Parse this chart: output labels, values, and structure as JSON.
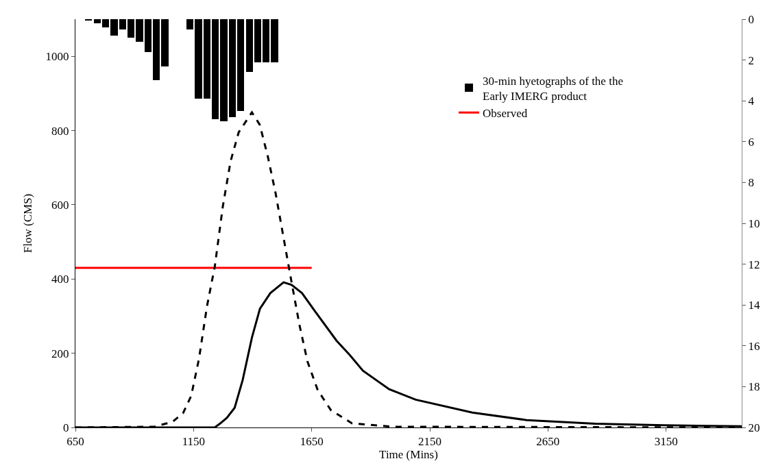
{
  "chart_data": {
    "type": "line",
    "xlabel": "Time (Mins)",
    "ylabel": "Flow (CMS)",
    "xlim": [
      650,
      3470
    ],
    "xticks": [
      650,
      1150,
      1650,
      2150,
      2650,
      3150
    ],
    "ylim": [
      0,
      1100
    ],
    "yticks": [
      0,
      200,
      400,
      600,
      800,
      1000
    ],
    "y2lim": [
      20,
      0
    ],
    "y2ticks": [
      0,
      2,
      4,
      6,
      8,
      10,
      12,
      14,
      16,
      18,
      20
    ],
    "legend": "right",
    "series": [
      {
        "name": "30-min hyetographs of the the\nEarly IMERG product",
        "type": "bar",
        "axis": "y2",
        "color": "#000000",
        "x": [
          706,
          742,
          778,
          814,
          850,
          885,
          921,
          957,
          993,
          1029,
          1135,
          1171,
          1207,
          1242,
          1278,
          1314,
          1350,
          1386,
          1421,
          1457,
          1493
        ],
        "values": [
          0.05,
          0.2,
          0.4,
          0.8,
          0.5,
          0.9,
          1.1,
          1.6,
          3.0,
          2.3,
          0.5,
          3.9,
          3.9,
          4.9,
          5.0,
          4.8,
          4.5,
          2.6,
          2.1,
          2.1,
          2.1
        ]
      },
      {
        "name": "Observed",
        "color": "#ff0000",
        "line_style": "solid",
        "x": [
          650,
          1650
        ],
        "values": [
          430,
          430
        ]
      },
      {
        "color": "#000000",
        "line_style": "solid",
        "x": [
          650,
          1240,
          1263,
          1291,
          1324,
          1358,
          1397,
          1431,
          1475,
          1531,
          1565,
          1609,
          1664,
          1755,
          1810,
          1867,
          1978,
          2090,
          2330,
          2559,
          2850,
          3140,
          3470
        ],
        "values": [
          0,
          0,
          11,
          26,
          53,
          128,
          242,
          320,
          362,
          391,
          384,
          362,
          313,
          234,
          196,
          153,
          103,
          75,
          40,
          20,
          10,
          6,
          3
        ]
      },
      {
        "color": "#000000",
        "line_style": "dashed",
        "x": [
          650,
          983,
          1061,
          1106,
          1140,
          1173,
          1207,
          1240,
          1274,
          1307,
          1341,
          1397,
          1430,
          1464,
          1497,
          1531,
          1565,
          1598,
          1632,
          1676,
          1731,
          1821,
          1990,
          3470
        ],
        "values": [
          0,
          2,
          15,
          39,
          85,
          185,
          327,
          434,
          596,
          718,
          795,
          849,
          816,
          731,
          632,
          511,
          391,
          277,
          178,
          100,
          47,
          11,
          2,
          0
        ]
      }
    ]
  }
}
